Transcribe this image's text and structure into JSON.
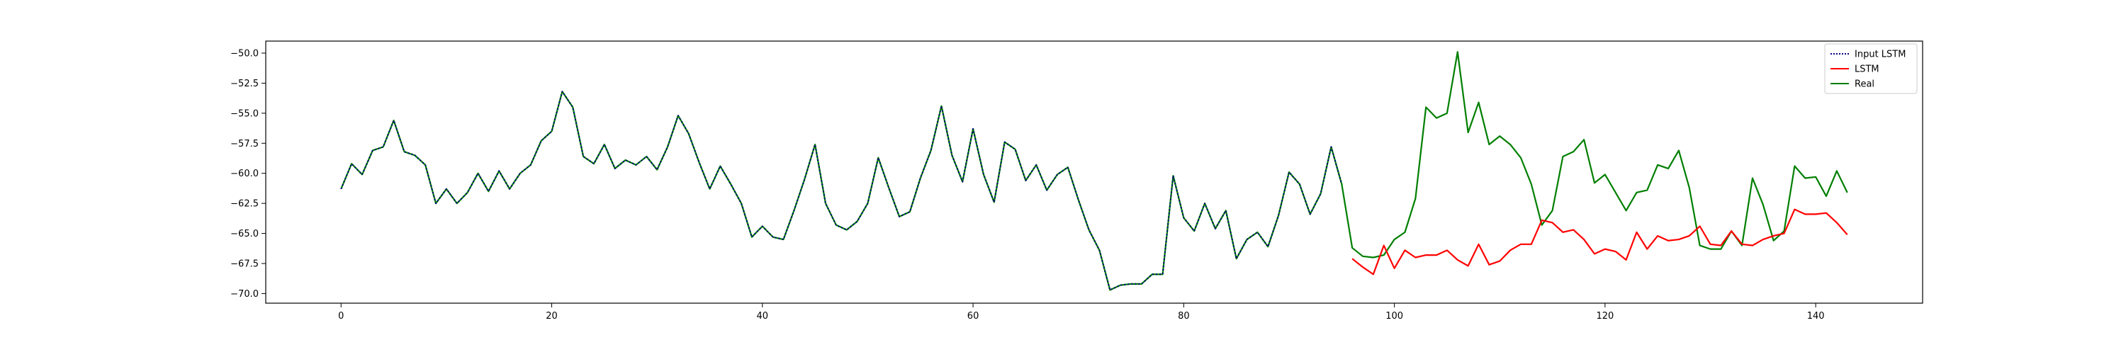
{
  "chart_data": {
    "type": "line",
    "title": "",
    "xlabel": "",
    "ylabel": "",
    "xlim": [
      -7.15,
      150.15
    ],
    "ylim": [
      -70.8,
      -49.0
    ],
    "xticks": [
      0,
      20,
      40,
      60,
      80,
      100,
      120,
      140
    ],
    "yticks": [
      -50.0,
      -52.5,
      -55.0,
      -57.5,
      -60.0,
      -62.5,
      -65.0,
      -67.5,
      -70.0
    ],
    "xtick_labels": [
      "0",
      "20",
      "40",
      "60",
      "80",
      "100",
      "120",
      "140"
    ],
    "ytick_labels": [
      "−50.0",
      "−52.5",
      "−55.0",
      "−57.5",
      "−60.0",
      "−62.5",
      "−65.0",
      "−67.5",
      "−70.0"
    ],
    "grid": false,
    "legend_position": "top-right",
    "series": [
      {
        "name": "Input LSTM",
        "color": "#00007f",
        "linestyle": "dotted",
        "x_start": 0,
        "values": [
          -61.3,
          -59.2,
          -60.1,
          -58.1,
          -57.8,
          -55.6,
          -58.2,
          -58.5,
          -59.3,
          -62.5,
          -61.3,
          -62.5,
          -61.6,
          -60.0,
          -61.5,
          -59.8,
          -61.3,
          -60.0,
          -59.3,
          -57.3,
          -56.5,
          -53.2,
          -54.5,
          -58.6,
          -59.2,
          -57.6,
          -59.6,
          -58.9,
          -59.3,
          -58.6,
          -59.7,
          -57.8,
          -55.2,
          -56.7,
          -59.1,
          -61.3,
          -59.4,
          -60.9,
          -62.5,
          -65.3,
          -64.4,
          -65.3,
          -65.5,
          -63.1,
          -60.5,
          -57.6,
          -62.5,
          -64.3,
          -64.7,
          -64.0,
          -62.5,
          -58.7,
          -61.2,
          -63.6,
          -63.2,
          -60.4,
          -58.1,
          -54.4,
          -58.5,
          -60.7,
          -56.3,
          -60.1,
          -62.4,
          -57.4,
          -58.0,
          -60.6,
          -59.3,
          -61.4,
          -60.1,
          -59.5,
          -62.2,
          -64.7,
          -66.4,
          -69.7,
          -69.3,
          -69.2,
          -69.2,
          -68.4,
          -68.4,
          -60.2,
          -63.7,
          -64.8,
          -62.5,
          -64.6,
          -63.1,
          -67.1,
          -65.5,
          -64.9,
          -66.1,
          -63.5,
          -59.9,
          -60.9,
          -63.4,
          -61.7,
          -57.8,
          -60.9
        ]
      },
      {
        "name": "LSTM",
        "color": "#ff0000",
        "linestyle": "solid",
        "x_start": 96,
        "values": [
          -67.1,
          -67.8,
          -68.4,
          -66.0,
          -67.9,
          -66.4,
          -67.0,
          -66.8,
          -66.8,
          -66.4,
          -67.2,
          -67.7,
          -65.9,
          -67.6,
          -67.3,
          -66.4,
          -65.9,
          -65.9,
          -63.9,
          -64.1,
          -64.9,
          -64.7,
          -65.5,
          -66.7,
          -66.3,
          -66.5,
          -67.2,
          -64.9,
          -66.3,
          -65.2,
          -65.6,
          -65.5,
          -65.2,
          -64.4,
          -65.9,
          -66.0,
          -64.8,
          -65.9,
          -66.0,
          -65.5,
          -65.2,
          -65.0,
          -63.0,
          -63.4,
          -63.4,
          -63.3,
          -64.1,
          -65.1
        ]
      },
      {
        "name": "Real",
        "color": "#007f00",
        "linestyle": "solid",
        "x_start": 0,
        "values": [
          -61.3,
          -59.2,
          -60.1,
          -58.1,
          -57.8,
          -55.6,
          -58.2,
          -58.5,
          -59.3,
          -62.5,
          -61.3,
          -62.5,
          -61.6,
          -60.0,
          -61.5,
          -59.8,
          -61.3,
          -60.0,
          -59.3,
          -57.3,
          -56.5,
          -53.2,
          -54.5,
          -58.6,
          -59.2,
          -57.6,
          -59.6,
          -58.9,
          -59.3,
          -58.6,
          -59.7,
          -57.8,
          -55.2,
          -56.7,
          -59.1,
          -61.3,
          -59.4,
          -60.9,
          -62.5,
          -65.3,
          -64.4,
          -65.3,
          -65.5,
          -63.1,
          -60.5,
          -57.6,
          -62.5,
          -64.3,
          -64.7,
          -64.0,
          -62.5,
          -58.7,
          -61.2,
          -63.6,
          -63.2,
          -60.4,
          -58.1,
          -54.4,
          -58.5,
          -60.7,
          -56.3,
          -60.1,
          -62.4,
          -57.4,
          -58.0,
          -60.6,
          -59.3,
          -61.4,
          -60.1,
          -59.5,
          -62.2,
          -64.7,
          -66.4,
          -69.7,
          -69.3,
          -69.2,
          -69.2,
          -68.4,
          -68.4,
          -60.2,
          -63.7,
          -64.8,
          -62.5,
          -64.6,
          -63.1,
          -67.1,
          -65.5,
          -64.9,
          -66.1,
          -63.5,
          -59.9,
          -60.9,
          -63.4,
          -61.7,
          -57.8,
          -60.9,
          -66.2,
          -66.9,
          -67.0,
          -66.8,
          -65.5,
          -64.9,
          -62.1,
          -54.5,
          -55.4,
          -55.0,
          -49.9,
          -56.6,
          -54.1,
          -57.6,
          -56.9,
          -57.6,
          -58.7,
          -60.9,
          -64.3,
          -63.1,
          -58.6,
          -58.2,
          -57.2,
          -60.8,
          -60.1,
          -61.6,
          -63.1,
          -61.6,
          -61.4,
          -59.3,
          -59.6,
          -58.1,
          -61.2,
          -66.0,
          -66.3,
          -66.3,
          -64.8,
          -66.0,
          -60.4,
          -62.6,
          -65.6,
          -64.8,
          -59.4,
          -60.4,
          -60.3,
          -61.9,
          -59.8,
          -61.6
        ]
      }
    ]
  }
}
